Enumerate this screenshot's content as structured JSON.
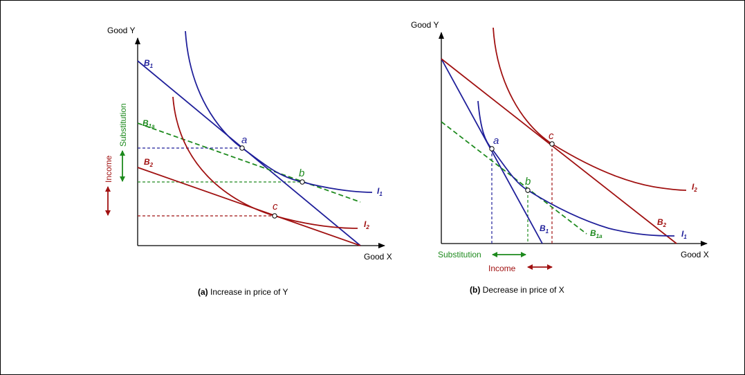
{
  "colors": {
    "blue": "#1f1f9a",
    "red": "#a01010",
    "green": "#1d8a1d",
    "black": "#000000"
  },
  "panel_a": {
    "y_axis_label": "Good Y",
    "x_axis_label": "Good X",
    "caption_bold": "(a)",
    "caption_text": " Increase in price of Y",
    "budget_b1": {
      "main": "B",
      "sub": "1"
    },
    "budget_b1a": {
      "main": "B",
      "sub": "1a"
    },
    "budget_b2": {
      "main": "B",
      "sub": "2"
    },
    "indiff_i1": {
      "main": "I",
      "sub": "1"
    },
    "indiff_i2": {
      "main": "I",
      "sub": "2"
    },
    "point_a": "a",
    "point_b": "b",
    "point_c": "c",
    "substitution_label": "Substitution",
    "income_label": "Income"
  },
  "panel_b": {
    "y_axis_label": "Good Y",
    "x_axis_label": "Good X",
    "caption_bold": "(b)",
    "caption_text": " Decrease in price of X",
    "budget_b1": {
      "main": "B",
      "sub": "1"
    },
    "budget_b1a": {
      "main": "B",
      "sub": "1a"
    },
    "budget_b2": {
      "main": "B",
      "sub": "2"
    },
    "indiff_i1": {
      "main": "I",
      "sub": "1"
    },
    "indiff_i2": {
      "main": "I",
      "sub": "2"
    },
    "point_a": "a",
    "point_b": "b",
    "point_c": "c",
    "substitution_label": "Substitution",
    "income_label": "Income"
  }
}
